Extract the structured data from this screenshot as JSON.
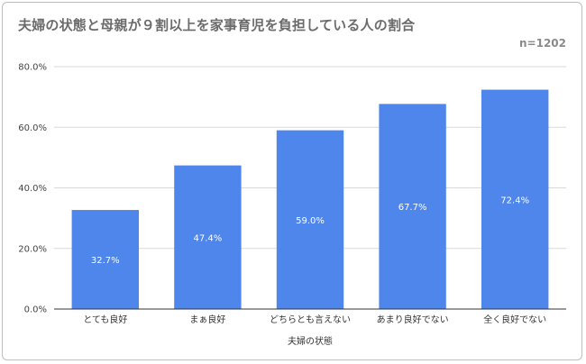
{
  "chart_data": {
    "type": "bar",
    "title": "夫婦の状態と母親が９割以上を家事育児を負担している人の割合",
    "note": "n=1202",
    "xlabel": "夫婦の状態",
    "ylabel": "",
    "categories": [
      "とても良好",
      "まぁ良好",
      "どちらとも言えない",
      "あまり良好でない",
      "全く良好でない"
    ],
    "values": [
      32.7,
      47.4,
      59.0,
      67.7,
      72.4
    ],
    "value_labels": [
      "32.7%",
      "47.4%",
      "59.0%",
      "67.7%",
      "72.4%"
    ],
    "ylim": [
      0,
      80
    ],
    "yticks": [
      0,
      20,
      40,
      60,
      80
    ],
    "ytick_labels": [
      "0.0%",
      "20.0%",
      "40.0%",
      "60.0%",
      "80.0%"
    ],
    "grid": true,
    "bar_color": "#4f86ec",
    "grid_color": "#d9d9d9"
  }
}
